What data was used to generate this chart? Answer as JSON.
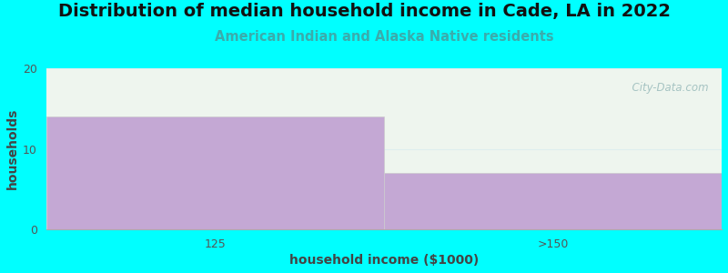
{
  "title": "Distribution of median household income in Cade, LA in 2022",
  "subtitle": "American Indian and Alaska Native residents",
  "xlabel": "household income ($1000)",
  "ylabel": "households",
  "categories": [
    "125",
    ">150"
  ],
  "values": [
    14,
    7
  ],
  "bar_color": "#C4A8D4",
  "ylim": [
    0,
    20
  ],
  "yticks": [
    0,
    10,
    20
  ],
  "background_color": "#00FFFF",
  "plot_bg_color": "#EEF5EE",
  "title_fontsize": 14,
  "subtitle_fontsize": 10.5,
  "subtitle_color": "#3AACAC",
  "axis_label_color": "#444444",
  "axis_label_fontsize": 10,
  "tick_fontsize": 9,
  "tick_color": "#555555",
  "watermark": "  City-Data.com",
  "watermark_color": "#99BBBB",
  "grid_color": "#DDEEEE",
  "bar_edge_color": "#CCCCCC"
}
